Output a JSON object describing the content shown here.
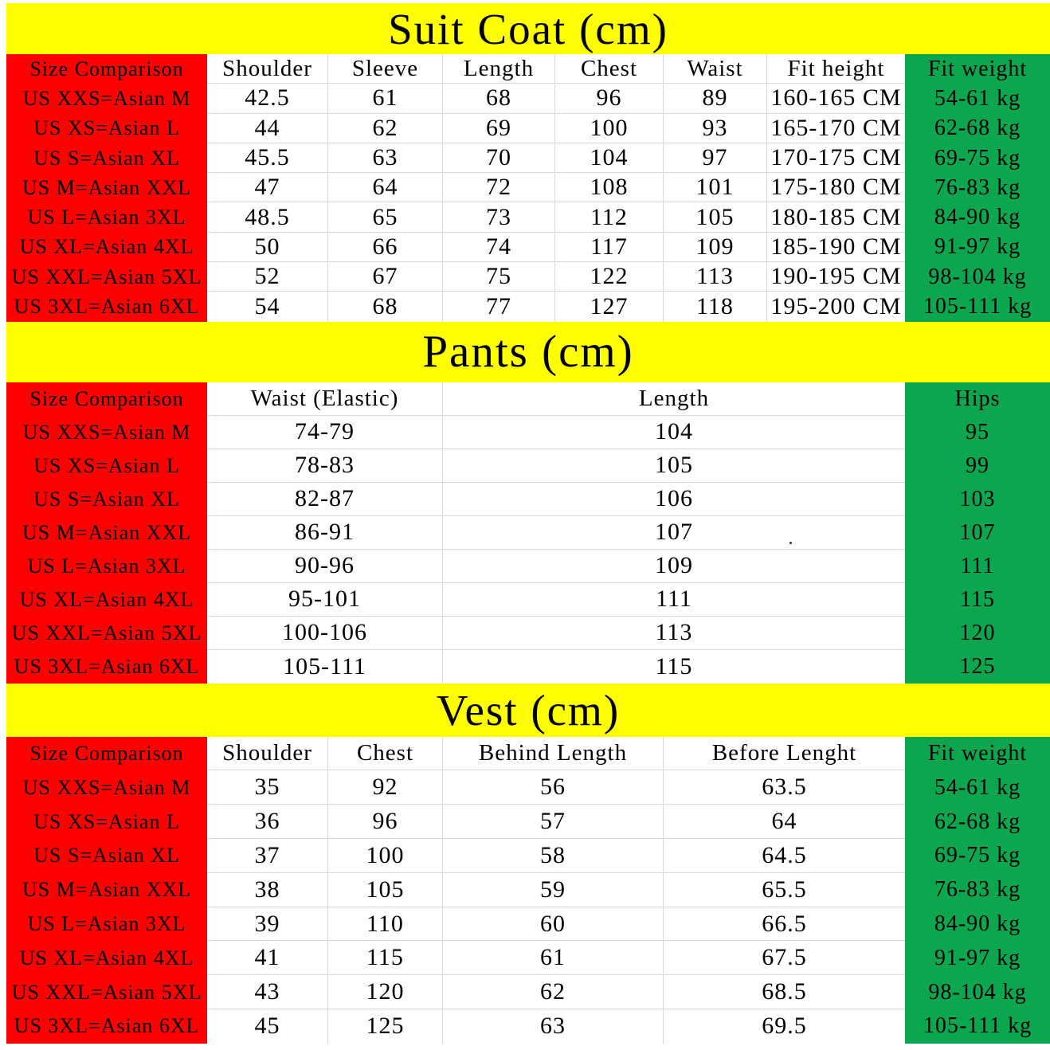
{
  "colors": {
    "title_band": "#ffff00",
    "label_column": "#fe0000",
    "weight_column": "#0ca64f",
    "grid_line": "#d9d9d9",
    "text": "#000000"
  },
  "chart_data": [
    {
      "type": "table",
      "title": "Suit Coat (cm)",
      "columns": [
        "Size Comparison",
        "Shoulder",
        "Sleeve",
        "Length",
        "Chest",
        "Waist",
        "Fit height",
        "Fit weight"
      ],
      "rows": [
        [
          "US XXS=Asian M",
          "42.5",
          "61",
          "68",
          "96",
          "89",
          "160-165 CM",
          "54-61 kg"
        ],
        [
          "US XS=Asian L",
          "44",
          "62",
          "69",
          "100",
          "93",
          "165-170 CM",
          "62-68 kg"
        ],
        [
          "US S=Asian XL",
          "45.5",
          "63",
          "70",
          "104",
          "97",
          "170-175 CM",
          "69-75 kg"
        ],
        [
          "US M=Asian XXL",
          "47",
          "64",
          "72",
          "108",
          "101",
          "175-180 CM",
          "76-83 kg"
        ],
        [
          "US L=Asian 3XL",
          "48.5",
          "65",
          "73",
          "112",
          "105",
          "180-185 CM",
          "84-90 kg"
        ],
        [
          "US XL=Asian 4XL",
          "50",
          "66",
          "74",
          "117",
          "109",
          "185-190 CM",
          "91-97 kg"
        ],
        [
          "US XXL=Asian 5XL",
          "52",
          "67",
          "75",
          "122",
          "113",
          "190-195 CM",
          "98-104 kg"
        ],
        [
          "US 3XL=Asian 6XL",
          "54",
          "68",
          "77",
          "127",
          "118",
          "195-200 CM",
          "105-111 kg"
        ]
      ]
    },
    {
      "type": "table",
      "title": "Pants (cm)",
      "columns": [
        "Size Comparison",
        "Waist (Elastic)",
        "Length",
        "Hips"
      ],
      "rows": [
        [
          "US XXS=Asian M",
          "74-79",
          "104",
          "95"
        ],
        [
          "US XS=Asian L",
          "78-83",
          "105",
          "99"
        ],
        [
          "US S=Asian XL",
          "82-87",
          "106",
          "103"
        ],
        [
          "US M=Asian XXL",
          "86-91",
          "107",
          "107"
        ],
        [
          "US L=Asian 3XL",
          "90-96",
          "109",
          "111"
        ],
        [
          "US XL=Asian 4XL",
          "95-101",
          "111",
          "115"
        ],
        [
          "US XXL=Asian 5XL",
          "100-106",
          "113",
          "120"
        ],
        [
          "US 3XL=Asian 6XL",
          "105-111",
          "115",
          "125"
        ]
      ]
    },
    {
      "type": "table",
      "title": "Vest (cm)",
      "columns": [
        "Size Comparison",
        "Shoulder",
        "Chest",
        "Behind Length",
        "Before Lenght",
        "Fit weight"
      ],
      "rows": [
        [
          "US XXS=Asian M",
          "35",
          "92",
          "56",
          "63.5",
          "54-61 kg"
        ],
        [
          "US XS=Asian L",
          "36",
          "96",
          "57",
          "64",
          "62-68 kg"
        ],
        [
          "US S=Asian XL",
          "37",
          "100",
          "58",
          "64.5",
          "69-75 kg"
        ],
        [
          "US M=Asian XXL",
          "38",
          "105",
          "59",
          "65.5",
          "76-83 kg"
        ],
        [
          "US L=Asian 3XL",
          "39",
          "110",
          "60",
          "66.5",
          "84-90 kg"
        ],
        [
          "US XL=Asian 4XL",
          "41",
          "115",
          "61",
          "67.5",
          "91-97 kg"
        ],
        [
          "US XXL=Asian 5XL",
          "43",
          "120",
          "62",
          "68.5",
          "98-104 kg"
        ],
        [
          "US 3XL=Asian 6XL",
          "45",
          "125",
          "63",
          "69.5",
          "105-111 kg"
        ]
      ]
    }
  ]
}
